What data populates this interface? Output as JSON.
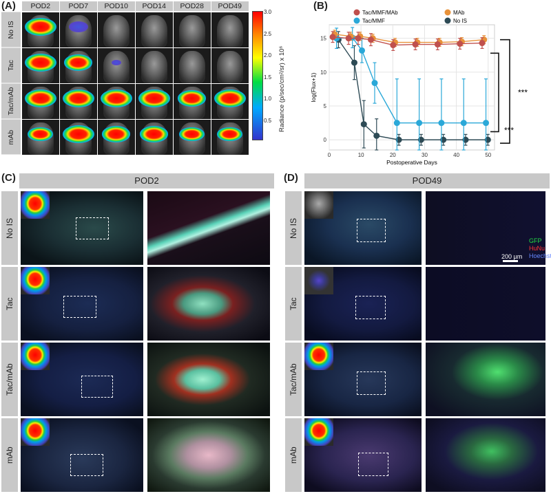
{
  "panels": {
    "A": "(A)",
    "B": "(B)",
    "C": "(C)",
    "D": "(D)"
  },
  "panelA": {
    "columns": [
      "POD2",
      "POD7",
      "POD10",
      "POD14",
      "POD28",
      "POD49"
    ],
    "rows": [
      "No IS",
      "Tac",
      "Tac/mAb",
      "mAb"
    ],
    "colorbar": {
      "label": "Radiance (p/sec/cm²/sr) x 10⁶",
      "ticks": [
        "3.0",
        "2.5",
        "2.0",
        "1.5",
        "1.0",
        "0.5"
      ],
      "colors": [
        "#ff0000",
        "#ff8800",
        "#ffff00",
        "#00dd44",
        "#00aaff",
        "#3333cc"
      ]
    }
  },
  "chart_data": {
    "type": "line",
    "xlabel": "Postoperative Days",
    "ylabel": "log(Flux+1)",
    "xlim": [
      0,
      52
    ],
    "ylim": [
      -1.5,
      17
    ],
    "xticks": [
      0,
      10,
      20,
      30,
      40,
      50
    ],
    "yticks": [
      0,
      5,
      10,
      15
    ],
    "grid": true,
    "legend_placement": "top",
    "x": [
      2,
      7,
      10,
      14,
      21,
      28,
      35,
      42,
      49
    ],
    "series": [
      {
        "name": "Tac/MMF/MAb",
        "color": "#c0504d",
        "values": [
          15.2,
          15.0,
          15.0,
          14.8,
          14.0,
          14.1,
          14.1,
          14.2,
          14.3
        ],
        "err": [
          0.8,
          0.9,
          0.9,
          0.9,
          0.8,
          0.8,
          0.8,
          0.8,
          0.8
        ]
      },
      {
        "name": "MAb",
        "color": "#e8923a",
        "values": [
          15.6,
          15.3,
          15.3,
          15.0,
          14.4,
          14.4,
          14.4,
          14.5,
          14.8
        ],
        "err": [
          0.6,
          0.6,
          0.6,
          0.6,
          0.6,
          0.6,
          0.6,
          0.6,
          0.6
        ]
      },
      {
        "name": "Tac/MMF",
        "color": "#2aa8d8",
        "values": [
          15.0,
          15.1,
          13.2,
          8.4,
          2.5,
          2.5,
          2.5,
          2.5,
          2.5
        ],
        "err": [
          1.5,
          1.5,
          1.8,
          3.0,
          6.5,
          6.5,
          6.5,
          6.5,
          6.5
        ]
      },
      {
        "name": "No IS",
        "color": "#2d4a55",
        "values": [
          14.8,
          11.4,
          2.3,
          0.6,
          0.0,
          0.0,
          0.0,
          0.0,
          0.0
        ],
        "err": [
          1.2,
          2.5,
          3.5,
          2.5,
          0.8,
          0.8,
          0.8,
          0.8,
          0.8
        ]
      }
    ],
    "significance": [
      "***",
      "***"
    ]
  },
  "panelC": {
    "header": "POD2",
    "rows": [
      "No IS",
      "Tac",
      "Tac/mAb",
      "mAb"
    ]
  },
  "panelD": {
    "header": "POD49",
    "rows": [
      "No IS",
      "Tac",
      "Tac/mAb",
      "mAb"
    ],
    "stain_legend": [
      {
        "label": "GFP",
        "color": "#22dd44"
      },
      {
        "label": "HuNu",
        "color": "#ff3333"
      },
      {
        "label": "Hoechst",
        "color": "#5577ff"
      }
    ],
    "scale_bar": "200 µm"
  }
}
